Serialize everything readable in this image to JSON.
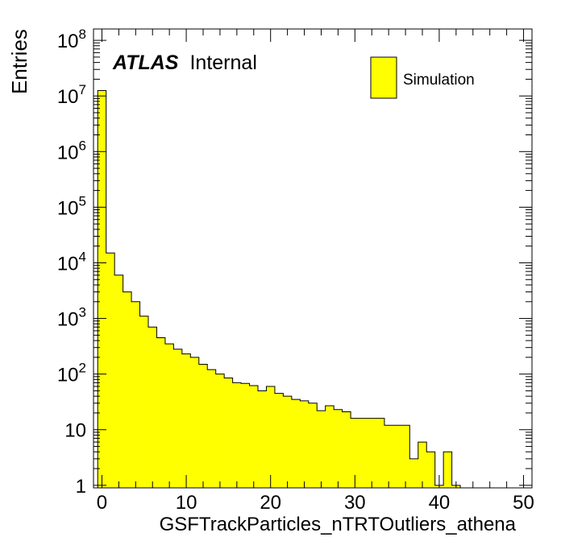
{
  "chart_data": {
    "type": "bar",
    "title": "",
    "xlabel": "GSFTrackParticles_nTRTOutliers_athena",
    "ylabel": "Entries",
    "atlas_label": {
      "bold": "ATLAS",
      "text": "Internal"
    },
    "legend": {
      "entries": [
        "Simulation"
      ],
      "position": "top-right"
    },
    "fill_color": "#ffff00",
    "line_color": "#000000",
    "xlim": [
      -1,
      51
    ],
    "ylim": [
      0.9,
      160000000
    ],
    "log_y": true,
    "grid": false,
    "x_ticks": [
      0,
      10,
      20,
      30,
      40,
      50
    ],
    "x_tick_labels": [
      "0",
      "10",
      "20",
      "30",
      "40",
      "50"
    ],
    "y_ticks": [
      {
        "value": 1,
        "base": "1",
        "exp": ""
      },
      {
        "value": 10,
        "base": "10",
        "exp": ""
      },
      {
        "value": 100,
        "base": "10",
        "exp": "2"
      },
      {
        "value": 1000,
        "base": "10",
        "exp": "3"
      },
      {
        "value": 10000,
        "base": "10",
        "exp": "4"
      },
      {
        "value": 100000,
        "base": "10",
        "exp": "5"
      },
      {
        "value": 1000000,
        "base": "10",
        "exp": "6"
      },
      {
        "value": 10000000,
        "base": "10",
        "exp": "7"
      },
      {
        "value": 100000000,
        "base": "10",
        "exp": "8"
      }
    ],
    "series": [
      {
        "name": "Simulation",
        "bin_low": [
          -0.5,
          0.5,
          1.5,
          2.5,
          3.5,
          4.5,
          5.5,
          6.5,
          7.5,
          8.5,
          9.5,
          10.5,
          11.5,
          12.5,
          13.5,
          14.5,
          15.5,
          16.5,
          17.5,
          18.5,
          19.5,
          20.5,
          21.5,
          22.5,
          23.5,
          24.5,
          25.5,
          26.5,
          27.5,
          28.5,
          29.5,
          30.5,
          31.5,
          32.5,
          33.5,
          34.5,
          35.5,
          36.5,
          37.5,
          38.5,
          39.5,
          40.5,
          41.5
        ],
        "values": [
          12500000,
          15000,
          6000,
          3000,
          2000,
          1100,
          700,
          450,
          350,
          280,
          230,
          200,
          150,
          120,
          100,
          85,
          70,
          68,
          62,
          50,
          60,
          45,
          40,
          35,
          33,
          30,
          22,
          27,
          23,
          21,
          16,
          16,
          16,
          16,
          12,
          12,
          12,
          3,
          6,
          4,
          1,
          4,
          1
        ]
      }
    ]
  }
}
